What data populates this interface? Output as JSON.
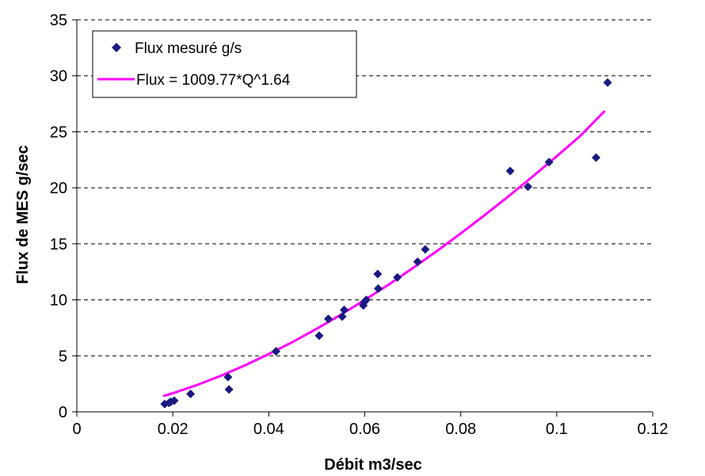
{
  "chart_data": {
    "type": "scatter",
    "xlabel": "Débit m3/sec",
    "ylabel": "Flux de MES g/sec",
    "xlim": [
      0,
      0.12
    ],
    "ylim": [
      0,
      35
    ],
    "x_ticks": [
      "0",
      "0.02",
      "0.04",
      "0.06",
      "0.08",
      "0.1",
      "0.12"
    ],
    "y_ticks": [
      "0",
      "5",
      "10",
      "15",
      "20",
      "25",
      "30",
      "35"
    ],
    "grid": "horizontal dashed",
    "legend_position": "top-left",
    "series": [
      {
        "name": "Flux mesuré g/s",
        "type": "scatter",
        "color": "#1a1a80",
        "marker": "diamond",
        "points": [
          [
            0.0183,
            0.7
          ],
          [
            0.0192,
            0.8
          ],
          [
            0.0196,
            0.9
          ],
          [
            0.0203,
            1.0
          ],
          [
            0.0237,
            1.6
          ],
          [
            0.0315,
            3.1
          ],
          [
            0.0317,
            2.0
          ],
          [
            0.0415,
            5.4
          ],
          [
            0.0505,
            6.8
          ],
          [
            0.0524,
            8.3
          ],
          [
            0.0553,
            8.5
          ],
          [
            0.0557,
            9.1
          ],
          [
            0.0597,
            9.5
          ],
          [
            0.0599,
            9.8
          ],
          [
            0.0603,
            10.0
          ],
          [
            0.0627,
            12.3
          ],
          [
            0.0628,
            11.0
          ],
          [
            0.0668,
            12.0
          ],
          [
            0.071,
            13.4
          ],
          [
            0.0726,
            14.5
          ],
          [
            0.0903,
            21.5
          ],
          [
            0.094,
            20.1
          ],
          [
            0.0984,
            22.3
          ],
          [
            0.1082,
            22.7
          ],
          [
            0.1106,
            29.4
          ]
        ]
      },
      {
        "name": "Flux = 1009.77*Q^1.64",
        "type": "line",
        "color": "#ff00ff",
        "points": [
          [
            0.018,
            1.41
          ],
          [
            0.02,
            1.66
          ],
          [
            0.025,
            2.39
          ],
          [
            0.03,
            3.22
          ],
          [
            0.035,
            4.14
          ],
          [
            0.04,
            5.16
          ],
          [
            0.045,
            6.24
          ],
          [
            0.05,
            7.42
          ],
          [
            0.055,
            8.67
          ],
          [
            0.06,
            9.99
          ],
          [
            0.065,
            11.37
          ],
          [
            0.07,
            12.83
          ],
          [
            0.075,
            14.35
          ],
          [
            0.08,
            15.93
          ],
          [
            0.085,
            17.57
          ],
          [
            0.09,
            19.26
          ],
          [
            0.095,
            21.01
          ],
          [
            0.1,
            22.82
          ],
          [
            0.105,
            24.67
          ],
          [
            0.11,
            26.86
          ]
        ]
      }
    ]
  }
}
